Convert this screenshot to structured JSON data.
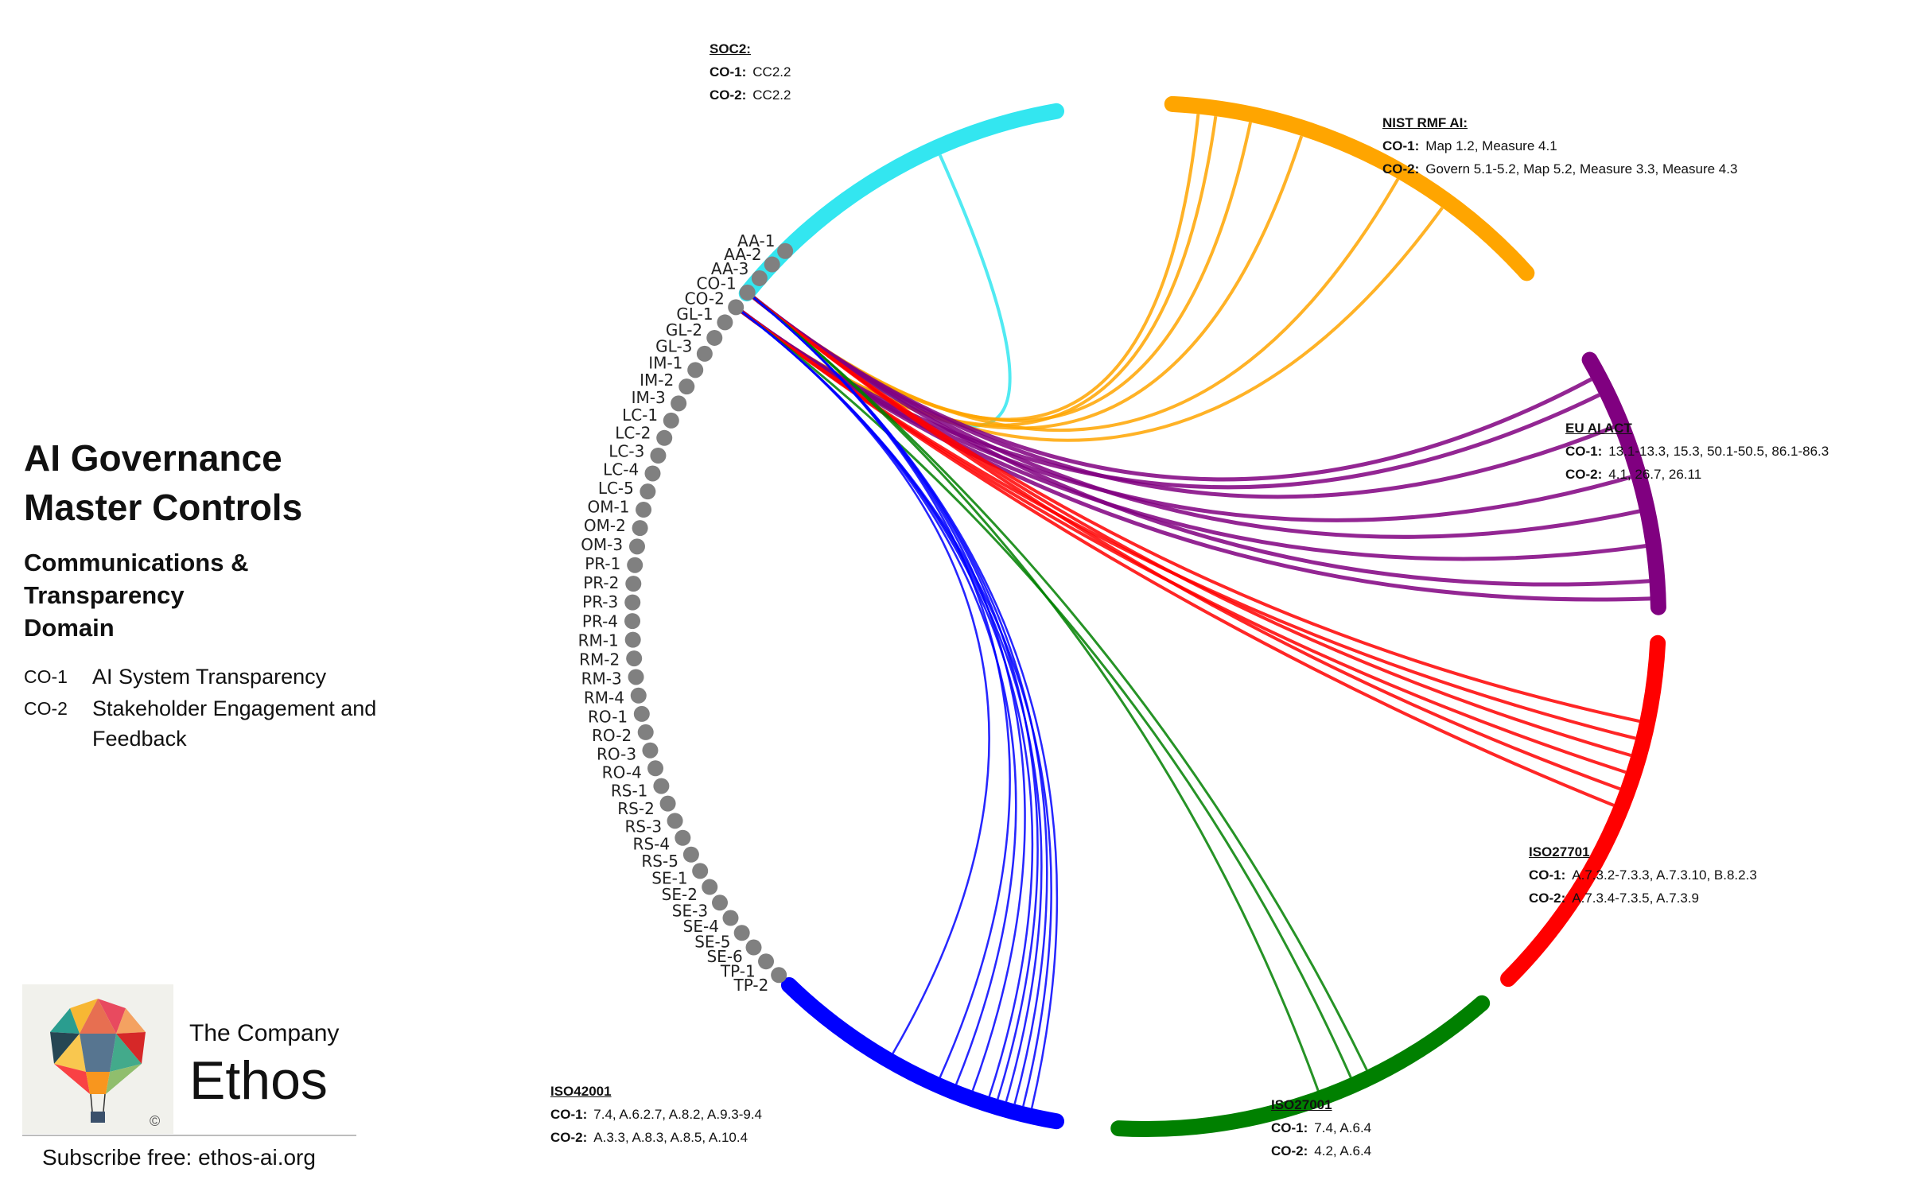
{
  "title_line1": "AI Governance",
  "title_line2": "Master Controls",
  "subtitle_lines": [
    "Communications &",
    "Transparency",
    "Domain"
  ],
  "legend": [
    {
      "code": "CO-1",
      "text": "AI System Transparency"
    },
    {
      "code": "CO-2",
      "text": "Stakeholder Engagement and Feedback"
    }
  ],
  "company": {
    "line1": "The Company",
    "line2": "Ethos",
    "copyright": "©"
  },
  "subscribe": "Subscribe free: ethos-ai.org",
  "controls": [
    "AA-1",
    "AA-2",
    "AA-3",
    "CO-1",
    "CO-2",
    "GL-1",
    "GL-2",
    "GL-3",
    "IM-1",
    "IM-2",
    "IM-3",
    "LC-1",
    "LC-2",
    "LC-3",
    "LC-4",
    "LC-5",
    "OM-1",
    "OM-2",
    "OM-3",
    "PR-1",
    "PR-2",
    "PR-3",
    "PR-4",
    "RM-1",
    "RM-2",
    "RM-3",
    "RM-4",
    "RO-1",
    "RO-2",
    "RO-3",
    "RO-4",
    "RS-1",
    "RS-2",
    "RS-3",
    "RS-4",
    "RS-5",
    "SE-1",
    "SE-2",
    "SE-3",
    "SE-4",
    "SE-5",
    "SE-6",
    "TP-1",
    "TP-2"
  ],
  "node_color": "#808080",
  "frameworks": [
    {
      "id": "soc2",
      "name": "SOC2:",
      "color": "#33e6f0",
      "co1": "CC2.2",
      "co2": "CC2.2"
    },
    {
      "id": "nist",
      "name": "NIST RMF AI:",
      "color": "#ffa500",
      "co1": "Map 1.2,  Measure 4.1",
      "co2": "Govern 5.1-5.2,  Map 5.2,  Measure 3.3, Measure 4.3"
    },
    {
      "id": "euai",
      "name": "EU AI ACT",
      "color": "#800080",
      "co1": "13.1-13.3,  15.3,  50.1-50.5,  86.1-86.3",
      "co2": "4.1,  26.7,  26.11"
    },
    {
      "id": "iso27701",
      "name": "ISO27701",
      "color": "#ff0000",
      "co1": "A.7.3.2-7.3.3, A.7.3.10, B.8.2.3",
      "co2": "A.7.3.4-7.3.5, A.7.3.9"
    },
    {
      "id": "iso27001",
      "name": "ISO27001",
      "color": "#008000",
      "co1": "7.4, A.6.4",
      "co2": "4.2, A.6.4"
    },
    {
      "id": "iso42001",
      "name": "ISO42001",
      "color": "#0000ff",
      "co1": "7.4, A.6.2.7, A.8.2, A.9.3-9.4",
      "co2": "A.3.3, A.8.3, A.8.5, A.10.4"
    }
  ],
  "row_label_co1": "CO-1:",
  "row_label_co2": "CO-2:"
}
